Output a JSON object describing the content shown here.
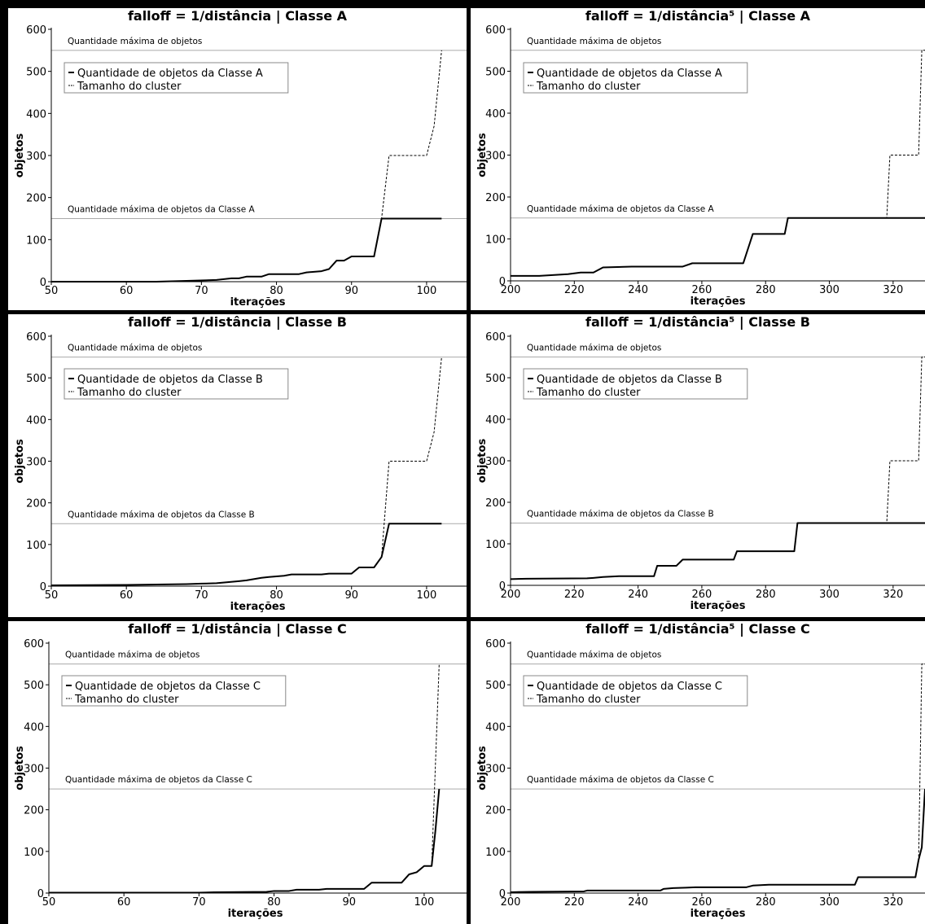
{
  "chart_data": [
    {
      "type": "line",
      "title": "falloff = 1/distância | Classe A",
      "xlabel": "iterações",
      "ylabel": "objetos",
      "xlim": [
        50,
        105
      ],
      "ylim": [
        0,
        600
      ],
      "xticks": [
        50,
        60,
        70,
        80,
        90,
        100
      ],
      "yticks": [
        0,
        100,
        200,
        300,
        400,
        500,
        600
      ],
      "grid": false,
      "legend_position": "top-left",
      "hlines": [
        {
          "y": 550,
          "label": "Quantidade máxima de objetos"
        },
        {
          "y": 150,
          "label": "Quantidade máxima de objetos da Classe A"
        }
      ],
      "series": [
        {
          "name": "Quantidade de objetos da Classe A",
          "style": "solid",
          "x": [
            50,
            64,
            68,
            72,
            74,
            75,
            76,
            78,
            79,
            83,
            84,
            86,
            87,
            88,
            89,
            90,
            93,
            94,
            102
          ],
          "y": [
            0,
            0,
            2,
            4,
            8,
            8,
            12,
            12,
            18,
            18,
            22,
            25,
            30,
            50,
            50,
            60,
            60,
            150,
            150
          ]
        },
        {
          "name": "Tamanho do cluster",
          "style": "dashed",
          "x": [
            50,
            64,
            68,
            72,
            74,
            75,
            76,
            78,
            79,
            83,
            84,
            86,
            87,
            88,
            89,
            90,
            93,
            94,
            95,
            100,
            101,
            102
          ],
          "y": [
            0,
            0,
            2,
            4,
            8,
            8,
            12,
            12,
            18,
            18,
            22,
            25,
            30,
            50,
            50,
            60,
            60,
            150,
            300,
            300,
            370,
            550
          ]
        }
      ]
    },
    {
      "type": "line",
      "title": "falloff = 1/distância⁵ | Classe A",
      "xlabel": "iterações",
      "ylabel": "objetos",
      "xlim": [
        200,
        330
      ],
      "ylim": [
        0,
        600
      ],
      "xticks": [
        200,
        220,
        240,
        260,
        280,
        300,
        320
      ],
      "yticks": [
        0,
        100,
        200,
        300,
        400,
        500,
        600
      ],
      "grid": false,
      "legend_position": "top-left",
      "hlines": [
        {
          "y": 550,
          "label": "Quantidade máxima de objetos"
        },
        {
          "y": 150,
          "label": "Quantidade máxima de objetos da Classe A"
        }
      ],
      "series": [
        {
          "name": "Quantidade de objetos da Classe A",
          "style": "solid",
          "x": [
            200,
            209,
            218,
            222,
            226,
            229,
            238,
            254,
            257,
            273,
            276,
            286,
            287,
            330
          ],
          "y": [
            12,
            12,
            16,
            20,
            20,
            32,
            34,
            34,
            42,
            42,
            112,
            112,
            150,
            150
          ]
        },
        {
          "name": "Tamanho do cluster",
          "style": "dashed",
          "x": [
            200,
            209,
            218,
            222,
            226,
            229,
            238,
            254,
            257,
            273,
            276,
            286,
            287,
            318,
            319,
            328,
            329,
            330
          ],
          "y": [
            12,
            12,
            16,
            20,
            20,
            32,
            34,
            34,
            42,
            42,
            112,
            112,
            150,
            150,
            300,
            300,
            550,
            550
          ]
        }
      ]
    },
    {
      "type": "line",
      "title": "falloff = 1/distância | Classe B",
      "xlabel": "iterações",
      "ylabel": "objetos",
      "xlim": [
        50,
        105
      ],
      "ylim": [
        0,
        600
      ],
      "xticks": [
        50,
        60,
        70,
        80,
        90,
        100
      ],
      "yticks": [
        0,
        100,
        200,
        300,
        400,
        500,
        600
      ],
      "grid": false,
      "legend_position": "top-left",
      "hlines": [
        {
          "y": 550,
          "label": "Quantidade máxima de objetos"
        },
        {
          "y": 150,
          "label": "Quantidade máxima de objetos da Classe B"
        }
      ],
      "series": [
        {
          "name": "Quantidade de objetos da Classe B",
          "style": "solid",
          "x": [
            50,
            60,
            68,
            70,
            72,
            75,
            76,
            78,
            79,
            81,
            82,
            86,
            87,
            90,
            91,
            93,
            94,
            95,
            102
          ],
          "y": [
            2,
            3,
            5,
            6,
            7,
            12,
            14,
            20,
            22,
            25,
            28,
            28,
            30,
            30,
            45,
            45,
            70,
            150,
            150
          ]
        },
        {
          "name": "Tamanho do cluster",
          "style": "dashed",
          "x": [
            50,
            60,
            68,
            70,
            72,
            75,
            76,
            78,
            79,
            81,
            82,
            86,
            87,
            90,
            91,
            93,
            94,
            95,
            100,
            101,
            102
          ],
          "y": [
            2,
            3,
            5,
            6,
            7,
            12,
            14,
            20,
            22,
            25,
            28,
            28,
            30,
            30,
            45,
            45,
            70,
            300,
            300,
            370,
            550
          ]
        }
      ]
    },
    {
      "type": "line",
      "title": "falloff = 1/distância⁵ | Classe B",
      "xlabel": "iterações",
      "ylabel": "objetos",
      "xlim": [
        200,
        330
      ],
      "ylim": [
        0,
        600
      ],
      "xticks": [
        200,
        220,
        240,
        260,
        280,
        300,
        320
      ],
      "yticks": [
        0,
        100,
        200,
        300,
        400,
        500,
        600
      ],
      "grid": false,
      "legend_position": "top-left",
      "hlines": [
        {
          "y": 550,
          "label": "Quantidade máxima de objetos"
        },
        {
          "y": 150,
          "label": "Quantidade máxima de objetos da Classe B"
        }
      ],
      "series": [
        {
          "name": "Quantidade de objetos da Classe B",
          "style": "solid",
          "x": [
            200,
            205,
            224,
            226,
            229,
            234,
            245,
            246,
            252,
            254,
            270,
            271,
            289,
            290,
            330
          ],
          "y": [
            15,
            16,
            17,
            18,
            20,
            22,
            22,
            47,
            47,
            62,
            62,
            82,
            82,
            150,
            150
          ]
        },
        {
          "name": "Tamanho do cluster",
          "style": "dashed",
          "x": [
            200,
            205,
            224,
            226,
            229,
            234,
            245,
            246,
            252,
            254,
            270,
            271,
            289,
            290,
            318,
            319,
            328,
            329,
            330
          ],
          "y": [
            15,
            16,
            17,
            18,
            20,
            22,
            22,
            47,
            47,
            62,
            62,
            82,
            82,
            150,
            150,
            300,
            300,
            550,
            550
          ]
        }
      ]
    },
    {
      "type": "line",
      "title": "falloff = 1/distância | Classe C",
      "xlabel": "iterações",
      "ylabel": "objetos",
      "xlim": [
        50,
        105
      ],
      "ylim": [
        0,
        600
      ],
      "xticks": [
        50,
        60,
        70,
        80,
        90,
        100
      ],
      "yticks": [
        0,
        100,
        200,
        300,
        400,
        500,
        600
      ],
      "grid": false,
      "legend_position": "top-left",
      "hlines": [
        {
          "y": 550,
          "label": "Quantidade máxima de objetos"
        },
        {
          "y": 250,
          "label": "Quantidade máxima de objetos da Classe C"
        }
      ],
      "series": [
        {
          "name": "Quantidade de objetos da Classe C",
          "style": "solid",
          "x": [
            50,
            70,
            72,
            79,
            80,
            82,
            83,
            86,
            87,
            92,
            93,
            97,
            98,
            99,
            100,
            101,
            101.5,
            102
          ],
          "y": [
            1,
            1,
            2,
            3,
            5,
            5,
            8,
            8,
            10,
            10,
            25,
            25,
            45,
            50,
            65,
            65,
            150,
            250
          ]
        },
        {
          "name": "Tamanho do cluster",
          "style": "dashed",
          "x": [
            50,
            70,
            72,
            79,
            80,
            82,
            83,
            86,
            87,
            92,
            93,
            97,
            98,
            99,
            100,
            101,
            102
          ],
          "y": [
            1,
            1,
            2,
            3,
            5,
            5,
            8,
            8,
            10,
            10,
            25,
            25,
            45,
            50,
            65,
            65,
            550
          ]
        }
      ]
    },
    {
      "type": "line",
      "title": "falloff = 1/distância⁵ | Classe C",
      "xlabel": "iterações",
      "ylabel": "objetos",
      "xlim": [
        200,
        330
      ],
      "ylim": [
        0,
        600
      ],
      "xticks": [
        200,
        220,
        240,
        260,
        280,
        300,
        320
      ],
      "yticks": [
        0,
        100,
        200,
        300,
        400,
        500,
        600
      ],
      "grid": false,
      "legend_position": "top-left",
      "hlines": [
        {
          "y": 550,
          "label": "Quantidade máxima de objetos"
        },
        {
          "y": 250,
          "label": "Quantidade máxima de objetos da Classe C"
        }
      ],
      "series": [
        {
          "name": "Quantidade de objetos da Classe C",
          "style": "solid",
          "x": [
            200,
            206,
            223,
            224,
            247,
            248,
            251,
            255,
            258,
            274,
            276,
            281,
            308,
            309,
            327,
            328,
            329,
            330
          ],
          "y": [
            2,
            3,
            4,
            6,
            6,
            10,
            12,
            13,
            14,
            14,
            18,
            20,
            20,
            38,
            38,
            80,
            110,
            250
          ]
        },
        {
          "name": "Tamanho do cluster",
          "style": "dashed",
          "x": [
            200,
            206,
            223,
            224,
            247,
            248,
            251,
            255,
            258,
            274,
            276,
            281,
            308,
            309,
            327,
            328,
            329,
            330
          ],
          "y": [
            2,
            3,
            4,
            6,
            6,
            10,
            12,
            13,
            14,
            14,
            18,
            20,
            20,
            38,
            38,
            80,
            550,
            550
          ]
        }
      ]
    }
  ]
}
